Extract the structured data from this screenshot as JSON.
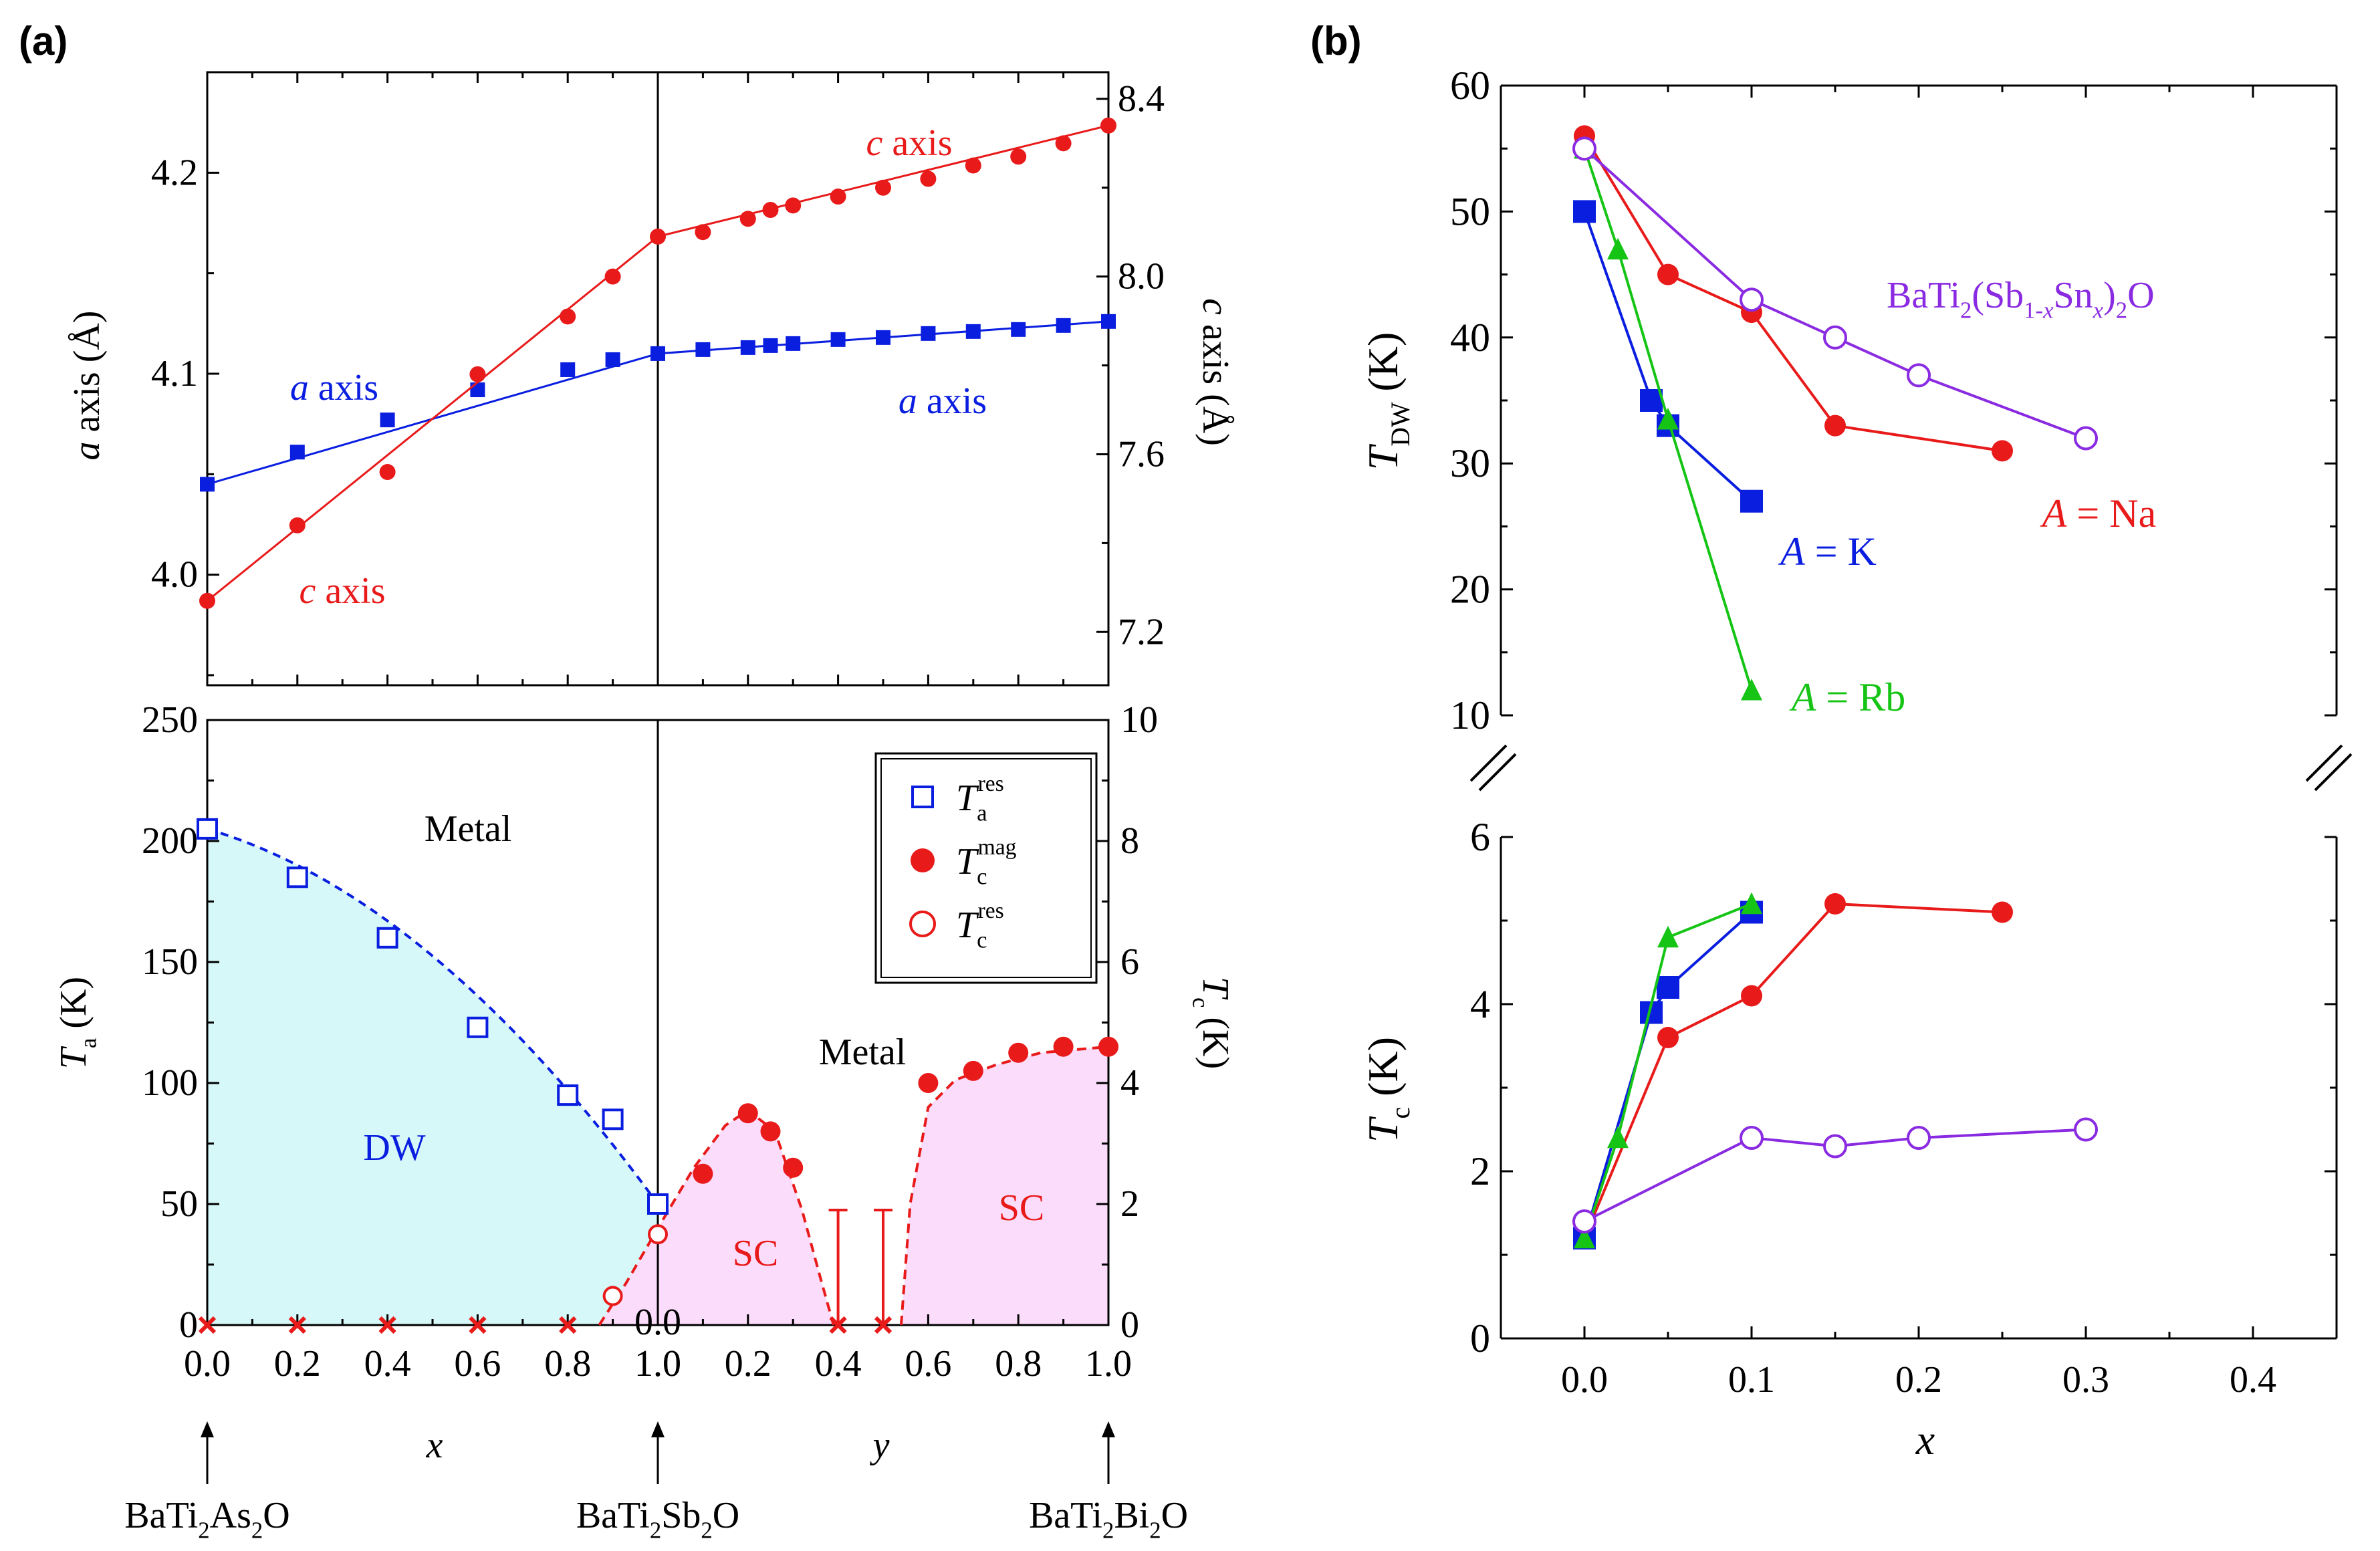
{
  "panel_labels": {
    "a": "(a)",
    "b": "(b)"
  },
  "colors": {
    "blue": "#0a1ee0",
    "red": "#e81a1a",
    "green": "#16c416",
    "purple": "#8a2be2",
    "cyan_fill": "#d6f8f8",
    "pink_fill": "#fbdcfb",
    "black": "#000000"
  },
  "chart_data": [
    {
      "id": "a_lattice",
      "type": "scatter",
      "title": "",
      "left_axis": {
        "label_italic": "a",
        "label_rest": " axis (Å)",
        "ylim": [
          3.945,
          4.25
        ],
        "ticks": [
          "4.0",
          "4.1",
          "4.2"
        ]
      },
      "right_axis": {
        "label_italic": "c",
        "label_rest": " axis (Å)",
        "ylim": [
          7.08,
          8.46
        ],
        "ticks": [
          "7.2",
          "7.6",
          "8.0",
          "8.4"
        ]
      },
      "xlim_s": [
        0,
        2
      ],
      "series": [
        {
          "name": "a axis",
          "axis": "left",
          "marker": "square",
          "x_s": [
            0,
            0.2,
            0.4,
            0.6,
            0.8,
            0.9,
            1.0,
            1.1,
            1.2,
            1.25,
            1.3,
            1.4,
            1.5,
            1.6,
            1.7,
            1.8,
            1.9,
            2.0
          ],
          "values": [
            4.045,
            4.061,
            4.077,
            4.092,
            4.102,
            4.107,
            4.11,
            4.112,
            4.113,
            4.114,
            4.115,
            4.117,
            4.118,
            4.12,
            4.121,
            4.122,
            4.124,
            4.126
          ]
        },
        {
          "name": "c axis",
          "axis": "right",
          "marker": "circle",
          "x_s": [
            0,
            0.2,
            0.4,
            0.6,
            0.8,
            0.9,
            1.0,
            1.1,
            1.2,
            1.25,
            1.3,
            1.4,
            1.5,
            1.6,
            1.7,
            1.8,
            1.9,
            2.0
          ],
          "values": [
            7.27,
            7.44,
            7.56,
            7.78,
            7.91,
            8.0,
            8.09,
            8.1,
            8.13,
            8.15,
            8.16,
            8.18,
            8.2,
            8.22,
            8.25,
            8.27,
            8.3,
            8.34
          ]
        }
      ],
      "labels": {
        "a_axis_left": "a axis",
        "a_axis_right": "a axis",
        "c_axis_top": "c axis",
        "c_axis_bottom": "c axis"
      }
    },
    {
      "id": "a_phase",
      "type": "scatter",
      "left_axis": {
        "label_main": "T",
        "label_sub": "a",
        "label_rest": " (K)",
        "ylim": [
          0,
          250
        ],
        "ticks": [
          "0",
          "50",
          "100",
          "150",
          "200",
          "250"
        ]
      },
      "right_axis": {
        "label_main": "T",
        "label_sub": "c",
        "label_rest": " (K)",
        "ylim": [
          0,
          10
        ],
        "ticks": [
          "0",
          "2",
          "4",
          "6",
          "8",
          "10"
        ]
      },
      "x_ticks_left": [
        "0.0",
        "0.2",
        "0.4",
        "0.6",
        "0.8",
        "1.0"
      ],
      "x_ticks_right": [
        "0.0",
        "0.2",
        "0.4",
        "0.6",
        "0.8",
        "1.0"
      ],
      "x_name_left": "x",
      "x_name_right": "y",
      "compounds": [
        {
          "pre": "BaTi",
          "sub1": "2",
          "mid": "As",
          "sub2": "2",
          "post": "O",
          "x_s": 0
        },
        {
          "pre": "BaTi",
          "sub1": "2",
          "mid": "Sb",
          "sub2": "2",
          "post": "O",
          "x_s": 1
        },
        {
          "pre": "BaTi",
          "sub1": "2",
          "mid": "Bi",
          "sub2": "2",
          "post": "O",
          "x_s": 2
        }
      ],
      "series": [
        {
          "name": "Ta res",
          "axis": "left",
          "marker": "open-square",
          "x_s": [
            0,
            0.2,
            0.4,
            0.6,
            0.8,
            0.9,
            1.0
          ],
          "values": [
            205,
            185,
            160,
            123,
            95,
            85,
            50
          ]
        },
        {
          "name": "Tc mag",
          "axis": "right",
          "marker": "filled-circle",
          "x_s": [
            1.1,
            1.2,
            1.25,
            1.3,
            1.6,
            1.7,
            1.8,
            1.9,
            2.0
          ],
          "values": [
            2.5,
            3.5,
            3.2,
            2.6,
            4.0,
            4.2,
            4.5,
            4.6,
            4.6
          ]
        },
        {
          "name": "Tc res",
          "axis": "right",
          "marker": "open-circle",
          "x_s": [
            0.9,
            1.0
          ],
          "values": [
            0.48,
            1.5
          ]
        },
        {
          "name": "no SC",
          "marker": "cross",
          "x_s": [
            0,
            0.2,
            0.4,
            0.6,
            0.8,
            1.4,
            1.5
          ],
          "values": [
            0,
            0,
            0,
            0,
            0,
            0,
            0
          ]
        }
      ],
      "upper_limits": [
        {
          "x_s": 1.4,
          "top_Tc": 1.9
        },
        {
          "x_s": 1.5,
          "top_Tc": 1.9
        }
      ],
      "regions": {
        "dw": "DW",
        "sc_left": "SC",
        "sc_right": "SC",
        "metal_left": "Metal",
        "metal_right": "Metal"
      },
      "legend": [
        {
          "main": "T",
          "sub": "a",
          "sup": "res",
          "marker": "open-square"
        },
        {
          "main": "T",
          "sub": "c",
          "sup": "mag",
          "marker": "filled-circle"
        },
        {
          "main": "T",
          "sub": "c",
          "sup": "res",
          "marker": "open-circle"
        }
      ]
    },
    {
      "id": "b_tdw",
      "type": "line",
      "ylabel_main": "T",
      "ylabel_sub": "DW",
      "ylabel_rest": " (K)",
      "ylim": [
        10,
        60
      ],
      "ticks": [
        "10",
        "20",
        "30",
        "40",
        "50",
        "60"
      ],
      "xlim": [
        -0.05,
        0.45
      ],
      "series": [
        {
          "name": "A = Na",
          "label_italic": "A",
          "label_rest": " = Na",
          "marker": "filled-circle",
          "x": [
            0,
            0.05,
            0.1,
            0.15,
            0.25
          ],
          "values": [
            56,
            45,
            42,
            33,
            31
          ]
        },
        {
          "name": "A = K",
          "label_italic": "A",
          "label_rest": " = K",
          "marker": "filled-square",
          "x": [
            0,
            0.04,
            0.05,
            0.1
          ],
          "values": [
            50,
            35,
            33,
            27
          ]
        },
        {
          "name": "A = Rb",
          "label_italic": "A",
          "label_rest": " = Rb",
          "marker": "filled-triangle",
          "x": [
            0,
            0.02,
            0.05,
            0.1
          ],
          "values": [
            55,
            47,
            33.5,
            12
          ]
        },
        {
          "name": "BaTi2(Sb1-xSnx)2O",
          "marker": "open-circle",
          "x": [
            0,
            0.1,
            0.15,
            0.2,
            0.3
          ],
          "values": [
            55,
            43,
            40,
            37,
            32
          ]
        }
      ],
      "sn_label": {
        "p1": "BaTi",
        "s1": "2",
        "p2": "(Sb",
        "s2a": "1-",
        "s2b": "x",
        "p3": "Sn",
        "s3": "x",
        "p4": ")",
        "s4": "2",
        "p5": "O"
      }
    },
    {
      "id": "b_tc",
      "type": "line",
      "ylabel_main": "T",
      "ylabel_sub": "c",
      "ylabel_rest": " (K)",
      "ylim": [
        0,
        6
      ],
      "ticks": [
        "0",
        "2",
        "4",
        "6"
      ],
      "xlim": [
        -0.05,
        0.45
      ],
      "x_ticks": [
        "0.0",
        "0.1",
        "0.2",
        "0.3",
        "0.4"
      ],
      "xlabel": "x",
      "series": [
        {
          "name": "A = Na",
          "marker": "filled-circle",
          "x": [
            0,
            0.05,
            0.1,
            0.15,
            0.25
          ],
          "values": [
            1.2,
            3.6,
            4.1,
            5.2,
            5.1
          ]
        },
        {
          "name": "A = K",
          "marker": "filled-square",
          "x": [
            0,
            0.04,
            0.05,
            0.1
          ],
          "values": [
            1.2,
            3.9,
            4.2,
            5.1
          ]
        },
        {
          "name": "A = Rb",
          "marker": "filled-triangle",
          "x": [
            0,
            0.02,
            0.05,
            0.1
          ],
          "values": [
            1.2,
            2.4,
            4.8,
            5.2
          ]
        },
        {
          "name": "BaTi2(Sb1-xSnx)2O",
          "marker": "open-circle",
          "x": [
            0,
            0.1,
            0.15,
            0.2,
            0.3
          ],
          "values": [
            1.4,
            2.4,
            2.3,
            2.4,
            2.5
          ]
        }
      ]
    }
  ]
}
